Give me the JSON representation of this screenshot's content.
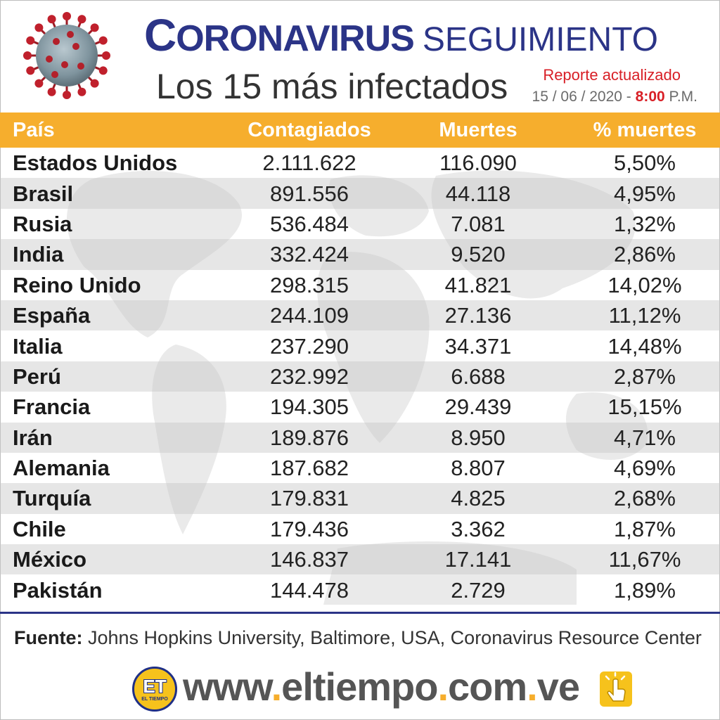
{
  "header": {
    "title_initial": "C",
    "title_rest": "ORONAVIRUS",
    "title_sub": "SEGUIMIENTO",
    "subtitle": "Los 15 más infectados",
    "report_label": "Reporte actualizado",
    "report_date": "15 / 06 / 2020 -",
    "report_time_hour": "8:00",
    "report_time_suffix": "P.M."
  },
  "table": {
    "headers": [
      "País",
      "Contagiados",
      "Muertes",
      "% muertes"
    ],
    "rows": [
      [
        "Estados Unidos",
        "2.111.622",
        "116.090",
        "5,50%"
      ],
      [
        "Brasil",
        "891.556",
        "44.118",
        "4,95%"
      ],
      [
        "Rusia",
        "536.484",
        "7.081",
        "1,32%"
      ],
      [
        "India",
        "332.424",
        "9.520",
        "2,86%"
      ],
      [
        "Reino Unido",
        "298.315",
        "41.821",
        "14,02%"
      ],
      [
        "España",
        "244.109",
        "27.136",
        "11,12%"
      ],
      [
        "Italia",
        "237.290",
        "34.371",
        "14,48%"
      ],
      [
        "Perú",
        "232.992",
        "6.688",
        "2,87%"
      ],
      [
        "Francia",
        "194.305",
        "29.439",
        "15,15%"
      ],
      [
        "Irán",
        "189.876",
        "8.950",
        "4,71%"
      ],
      [
        "Alemania",
        "187.682",
        "8.807",
        "4,69%"
      ],
      [
        "Turquía",
        "179.831",
        "4.825",
        "2,68%"
      ],
      [
        "Chile",
        "179.436",
        "3.362",
        "1,87%"
      ],
      [
        "México",
        "146.837",
        "17.141",
        "11,67%"
      ],
      [
        "Pakistán",
        "144.478",
        "2.729",
        "1,89%"
      ]
    ]
  },
  "source": {
    "label": "Fuente:",
    "text": " Johns Hopkins University, Baltimore, USA, Coronavirus Resource Center"
  },
  "footer": {
    "logo_text": "ET",
    "logo_brand": "EL TIEMPO",
    "url_parts": [
      "www",
      ".",
      "eltiempo",
      ".",
      "com",
      ".",
      "ve"
    ]
  },
  "colors": {
    "title_blue": "#2b3487",
    "header_orange": "#f6ae2d",
    "accent_red": "#d81f26",
    "logo_yellow": "#f6c21c"
  },
  "icons": [
    "coronavirus-icon",
    "world-map-background",
    "et-logo",
    "click-hand-icon"
  ]
}
